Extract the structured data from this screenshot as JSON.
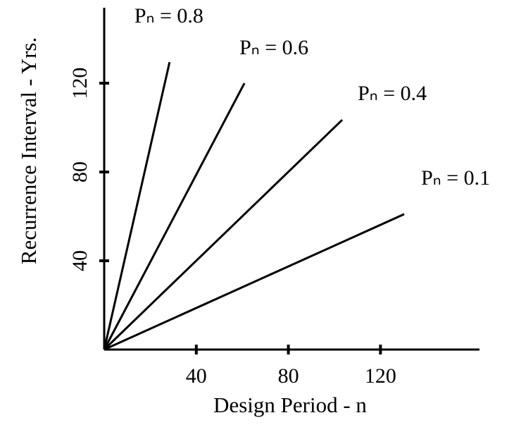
{
  "chart_data": {
    "type": "line",
    "x_label": "Design Period - n",
    "y_label": "Recurrence Interval - Yrs.",
    "xlim": [
      0,
      163
    ],
    "ylim": [
      0,
      154
    ],
    "xticks": [
      40,
      80,
      120
    ],
    "yticks": [
      40,
      80,
      120
    ],
    "grid": false,
    "series": [
      {
        "name": "Pₙ = 0.8",
        "color": "#000000",
        "x": [
          0,
          28.4
        ],
        "values": [
          0,
          129.5
        ]
      },
      {
        "name": "Pₙ = 0.6",
        "color": "#000000",
        "x": [
          0,
          60.9
        ],
        "values": [
          0,
          120
        ]
      },
      {
        "name": "Pₙ = 0.4",
        "color": "#000000",
        "x": [
          0,
          103.4
        ],
        "values": [
          0,
          103.5
        ]
      },
      {
        "name": "Pₙ = 0.1",
        "color": "#000000",
        "x": [
          0,
          130.3
        ],
        "values": [
          0,
          61
        ]
      }
    ]
  }
}
